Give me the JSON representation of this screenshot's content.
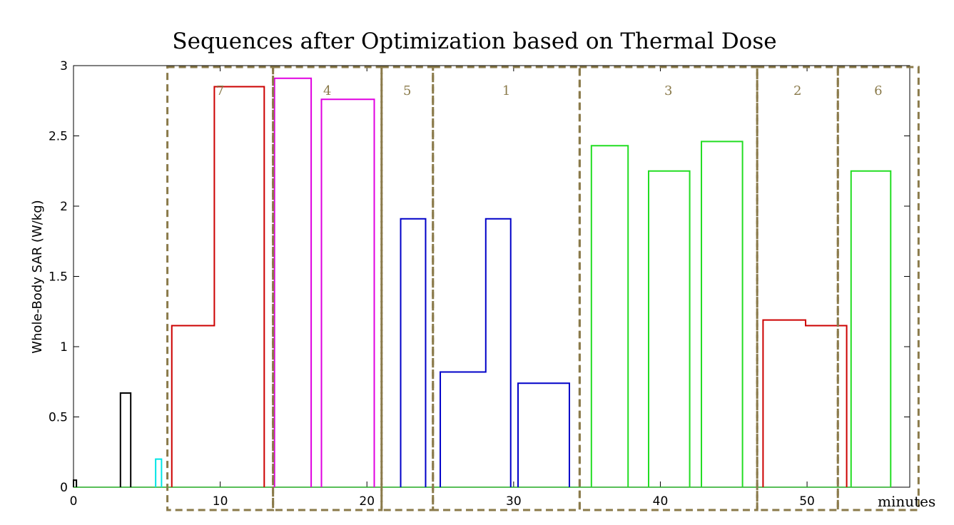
{
  "chart_data": {
    "type": "line",
    "title": "Sequences after Optimization based on Thermal Dose",
    "xlabel": "minutes",
    "ylabel": "Whole-Body SAR (W/kg)",
    "xlim": [
      0,
      57
    ],
    "ylim": [
      0,
      3
    ],
    "xticks": [
      0,
      10,
      20,
      30,
      40,
      50
    ],
    "yticks": [
      0,
      0.5,
      1,
      1.5,
      2,
      2.5,
      3
    ],
    "xtick_labels": [
      "0",
      "10",
      "20",
      "30",
      "40",
      "50"
    ],
    "ytick_labels": [
      "0",
      "0.5",
      "1",
      "1.5",
      "2",
      "2.5",
      "3"
    ],
    "group_color": "#8a7a4a",
    "groups": [
      {
        "label": "7",
        "x_start": 6.4,
        "x_end": 13.6
      },
      {
        "label": "4",
        "x_start": 13.6,
        "x_end": 21.0
      },
      {
        "label": "5",
        "x_start": 21.0,
        "x_end": 24.5
      },
      {
        "label": "1",
        "x_start": 24.5,
        "x_end": 34.5
      },
      {
        "label": "3",
        "x_start": 34.5,
        "x_end": 46.6
      },
      {
        "label": "2",
        "x_start": 46.6,
        "x_end": 52.1
      },
      {
        "label": "6",
        "x_start": 52.1,
        "x_end": 57.6
      }
    ],
    "series": [
      {
        "name": "black",
        "color": "#000000",
        "pulses": [
          [
            0.0,
            0.2,
            0.05
          ],
          [
            3.2,
            3.9,
            0.67
          ]
        ]
      },
      {
        "name": "cyan",
        "color": "#00e5e5",
        "pulses": [
          [
            5.6,
            6.0,
            0.2
          ]
        ]
      },
      {
        "name": "red",
        "color": "#cc0000",
        "steps": [
          [
            6.7,
            9.6,
            1.15
          ],
          [
            9.6,
            13.0,
            2.85
          ]
        ]
      },
      {
        "name": "magenta",
        "color": "#e000e0",
        "pulses": [
          [
            13.7,
            16.2,
            2.91
          ],
          [
            16.9,
            20.5,
            2.76
          ]
        ]
      },
      {
        "name": "blue",
        "color": "#0000c8",
        "pulses": [
          [
            22.3,
            24.0,
            1.91
          ]
        ],
        "steps": [
          [
            25.0,
            28.1,
            0.82
          ],
          [
            28.1,
            29.8,
            1.91
          ]
        ]
      },
      {
        "name": "blue-2",
        "color": "#0000c8",
        "pulses": [
          [
            30.3,
            33.8,
            0.74
          ]
        ]
      },
      {
        "name": "green",
        "color": "#22dd22",
        "pulses": [
          [
            35.3,
            37.8,
            2.43
          ],
          [
            39.2,
            42.0,
            2.25
          ],
          [
            42.8,
            45.6,
            2.46
          ],
          [
            53.0,
            55.7,
            2.25
          ]
        ]
      },
      {
        "name": "darkred",
        "color": "#cc0000",
        "steps": [
          [
            47.0,
            49.9,
            1.19
          ],
          [
            49.9,
            52.7,
            1.15
          ]
        ]
      }
    ]
  }
}
